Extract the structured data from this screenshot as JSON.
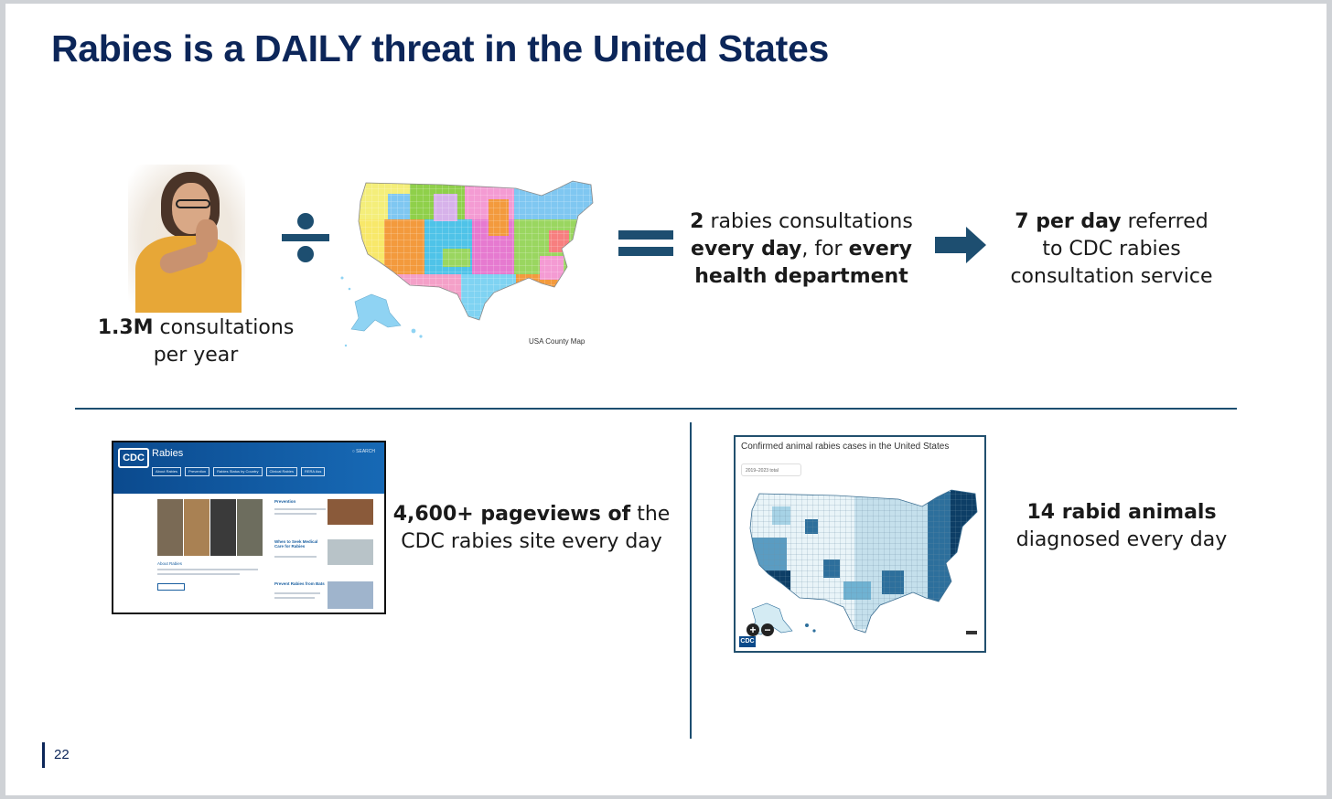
{
  "slide": {
    "title": "Rabies is a DAILY threat in the United States",
    "page_number": "22"
  },
  "top": {
    "consultations": {
      "bold": "1.3M",
      "rest": " consultations",
      "line2": "per year"
    },
    "map_caption": "USA County Map",
    "result": {
      "b1": "2",
      "r1": " rabies consultations",
      "b2": "every day",
      "r2": ", for ",
      "b3": "every",
      "b4": "health department"
    },
    "referred": {
      "b1": "7 per day",
      "r1": " referred",
      "line2": "to CDC rabies",
      "line3": "consultation service"
    }
  },
  "bottom_left": {
    "site": {
      "logo": "CDC",
      "title": "Rabies",
      "search": "○ SEARCH",
      "nav": [
        "About Rabies",
        "Prevention",
        "Rabies Status by Country",
        "Clinical Rabies",
        "RERA Ass"
      ],
      "sections": [
        "Prevention",
        "When to Seek Medical Care for Rabies",
        "Prevent Rabies from Bats",
        "About Rabies"
      ]
    },
    "pageviews": {
      "b1": "4,600+ pageviews of",
      "r1": " the",
      "line2": "CDC rabies site every day"
    }
  },
  "bottom_right": {
    "map_title": "Confirmed animal rabies cases in the United States",
    "select_value": "2019–2023 total",
    "zoom_in": "+",
    "zoom_out": "−",
    "logo": "CDC",
    "animals": {
      "bold": "14 rabid animals",
      "line2": "diagnosed every day"
    }
  },
  "colors": {
    "title": "#0c2659",
    "accent": "#1d4e70",
    "map_dark": "#0d3e66"
  }
}
